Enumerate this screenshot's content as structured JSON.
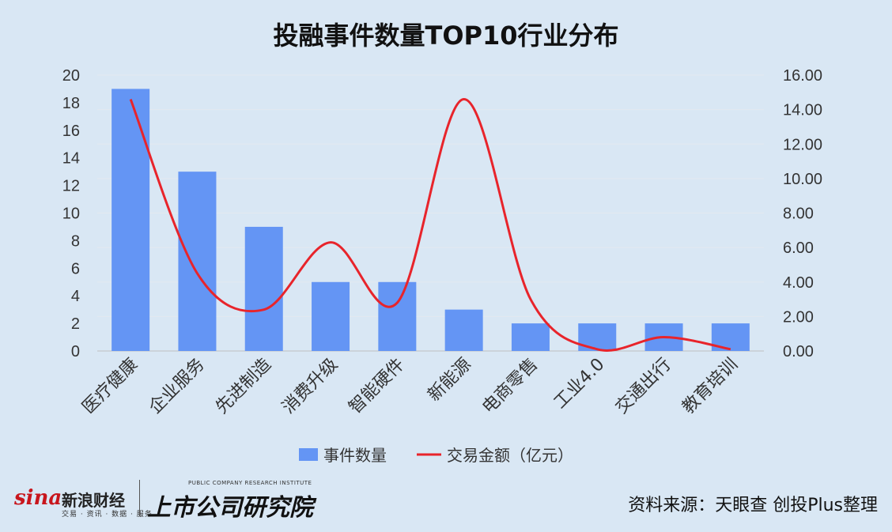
{
  "chart_data": {
    "type": "bar",
    "title": "投融事件数量TOP10行业分布",
    "categories": [
      "医疗健康",
      "企业服务",
      "先进制造",
      "消费升级",
      "智能硬件",
      "新能源",
      "电商零售",
      "工业4.0",
      "交通出行",
      "教育培训"
    ],
    "series": [
      {
        "name": "事件数量",
        "type": "bar",
        "axis": "left",
        "color": "#6495f4",
        "values": [
          19,
          13,
          9,
          5,
          5,
          3,
          2,
          2,
          2,
          2
        ]
      },
      {
        "name": "交易金额（亿元）",
        "type": "line",
        "axis": "right",
        "smooth": true,
        "color": "#e8242b",
        "values": [
          14.6,
          4.5,
          2.4,
          6.3,
          2.8,
          14.6,
          3.0,
          0.1,
          0.8,
          0.1
        ]
      }
    ],
    "y_left": {
      "min": 0,
      "max": 20,
      "ticks": [
        "0",
        "2",
        "4",
        "6",
        "8",
        "10",
        "12",
        "14",
        "16",
        "18",
        "20"
      ]
    },
    "y_right": {
      "min": 0,
      "max": 16,
      "ticks": [
        "0.00",
        "2.00",
        "4.00",
        "6.00",
        "8.00",
        "10.00",
        "12.00",
        "14.00",
        "16.00"
      ]
    },
    "grid": true,
    "legend_position": "bottom"
  },
  "footer": {
    "sina_brand": "sina",
    "sina_name": "新浪财经",
    "sina_sub": "交易 · 资讯 · 数据 · 服务",
    "ssyjy_en": "PUBLIC COMPANY RESEARCH INSTITUTE",
    "ssyjy_cn": "上市公司研究院",
    "source": "资料来源：天眼查 创投Plus整理"
  },
  "colors": {
    "background": "#d9e7f4",
    "bar": "#6495f4",
    "line": "#e8242b"
  }
}
